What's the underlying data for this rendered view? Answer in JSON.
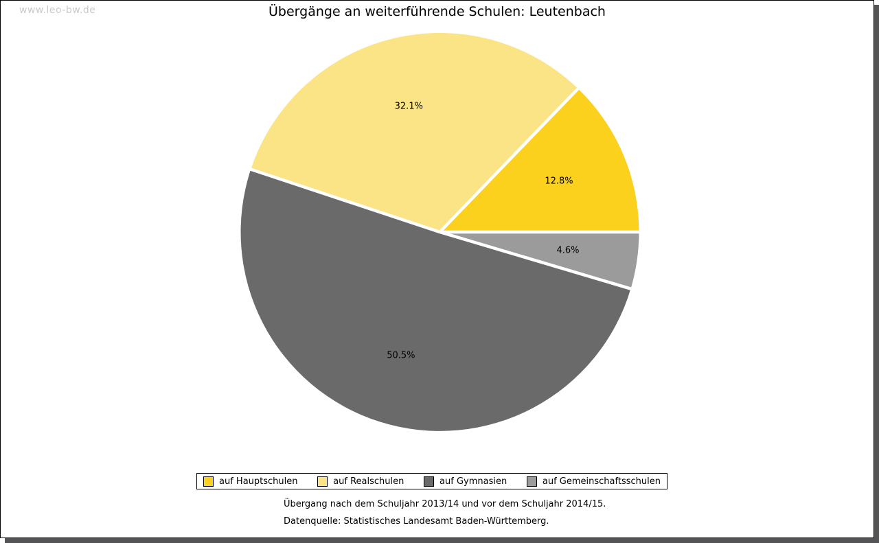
{
  "page": {
    "watermark": "www.leo-bw.de",
    "title": "Übergänge an weiterführende Schulen: Leutenbach",
    "footnotes": {
      "period": "Übergang nach dem Schuljahr 2013/14 und vor dem Schuljahr 2014/15.",
      "source": "Datenquelle: Statistisches Landesamt Baden-Württemberg."
    },
    "colors": {
      "frame_border": "#000000",
      "frame_shadow": "#545456",
      "watermark": "#C9C9C9",
      "slice_separator": "#FFFFFF"
    }
  },
  "chart_data": {
    "type": "pie",
    "title": "Übergänge an weiterführende Schulen: Leutenbach",
    "slices": [
      {
        "label": "auf Hauptschulen",
        "value": 12.8,
        "display": "12.8%",
        "color": "#FBD11D"
      },
      {
        "label": "auf Realschulen",
        "value": 32.1,
        "display": "32.1%",
        "color": "#FAE485"
      },
      {
        "label": "auf Gymnasien",
        "value": 50.5,
        "display": "50.5%",
        "color": "#6A6A6A"
      },
      {
        "label": "auf Gemeinschaftsschulen",
        "value": 4.6,
        "display": "4.6%",
        "color": "#9B9B9B"
      }
    ],
    "start_angle_deg": 0,
    "direction": "counterclockwise",
    "slice_label_format": "percent",
    "legend_position": "bottom",
    "legend_order": [
      "auf Hauptschulen",
      "auf Realschulen",
      "auf Gymnasien",
      "auf Gemeinschaftsschulen"
    ]
  }
}
